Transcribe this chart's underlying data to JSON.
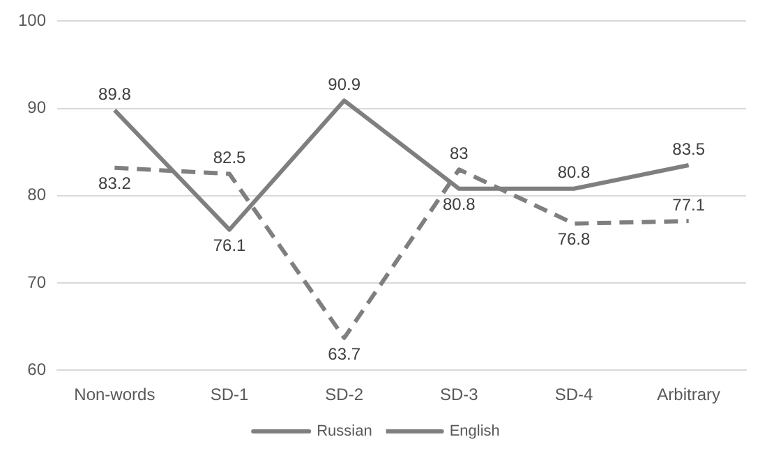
{
  "chart_data": {
    "type": "line",
    "categories": [
      "Non-words",
      "SD-1",
      "SD-2",
      "SD-3",
      "SD-4",
      "Arbitrary"
    ],
    "series": [
      {
        "name": "Russian",
        "color": "#7f7f7f",
        "line_style": "solid",
        "values": [
          89.8,
          76.1,
          90.9,
          80.8,
          80.8,
          83.5
        ]
      },
      {
        "name": "English",
        "color": "#7f7f7f",
        "line_style": "dashed",
        "values": [
          83.2,
          82.5,
          63.7,
          83,
          76.8,
          77.1
        ]
      }
    ],
    "ylim": [
      60,
      100
    ],
    "yticks": [
      60,
      70,
      80,
      90,
      100
    ],
    "grid": "y",
    "legend": "bottom",
    "data_labels": true,
    "marker": "none"
  }
}
